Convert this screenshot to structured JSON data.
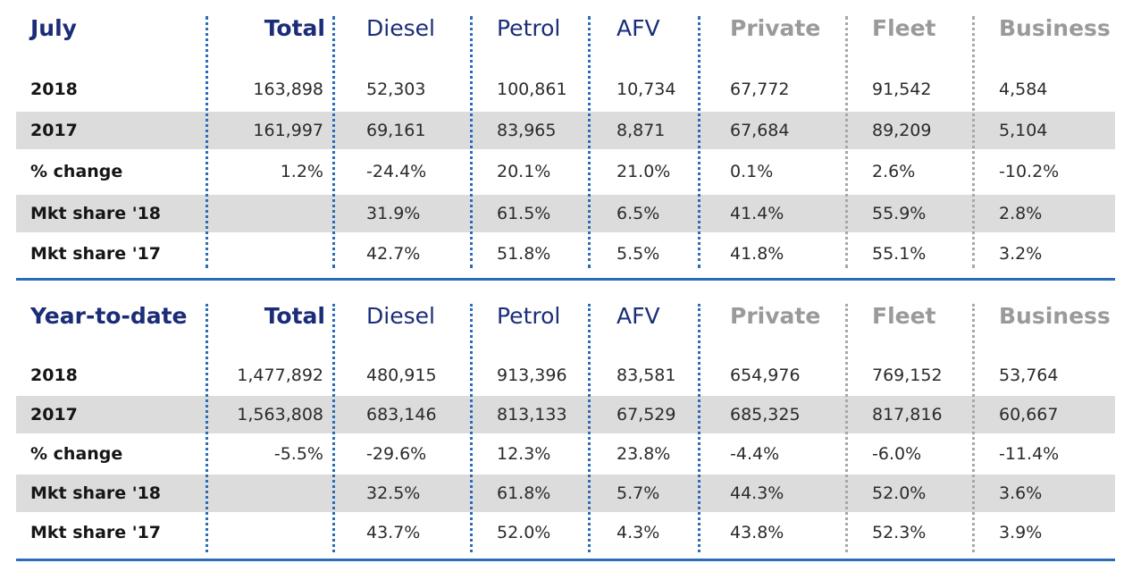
{
  "columns": [
    "Total",
    "Diesel",
    "Petrol",
    "AFV",
    "Private",
    "Fleet",
    "Business"
  ],
  "july": {
    "title": "July",
    "rows": [
      {
        "label": "2018",
        "values": [
          "163,898",
          "52,303",
          "100,861",
          "10,734",
          "67,772",
          "91,542",
          "4,584"
        ]
      },
      {
        "label": "2017",
        "values": [
          "161,997",
          "69,161",
          "83,965",
          "8,871",
          "67,684",
          "89,209",
          "5,104"
        ]
      },
      {
        "label": "% change",
        "values": [
          "1.2%",
          "-24.4%",
          "20.1%",
          "21.0%",
          "0.1%",
          "2.6%",
          "-10.2%"
        ]
      },
      {
        "label": "Mkt share '18",
        "values": [
          "",
          "31.9%",
          "61.5%",
          "6.5%",
          "41.4%",
          "55.9%",
          "2.8%"
        ]
      },
      {
        "label": "Mkt share '17",
        "values": [
          "",
          "42.7%",
          "51.8%",
          "5.5%",
          "41.8%",
          "55.1%",
          "3.2%"
        ]
      }
    ]
  },
  "ytd": {
    "title": "Year-to-date",
    "rows": [
      {
        "label": "2018",
        "values": [
          "1,477,892",
          "480,915",
          "913,396",
          "83,581",
          "654,976",
          "769,152",
          "53,764"
        ]
      },
      {
        "label": "2017",
        "values": [
          "1,563,808",
          "683,146",
          "813,133",
          "67,529",
          "685,325",
          "817,816",
          "60,667"
        ]
      },
      {
        "label": "% change",
        "values": [
          "-5.5%",
          "-29.6%",
          "12.3%",
          "23.8%",
          "-4.4%",
          "-6.0%",
          "-11.4%"
        ]
      },
      {
        "label": "Mkt share '18",
        "values": [
          "",
          "32.5%",
          "61.8%",
          "5.7%",
          "44.3%",
          "52.0%",
          "3.6%"
        ]
      },
      {
        "label": "Mkt share '17",
        "values": [
          "",
          "43.7%",
          "52.0%",
          "4.3%",
          "43.8%",
          "52.3%",
          "3.9%"
        ]
      }
    ]
  },
  "colors": {
    "header_blue": "#1b2d78",
    "separator_blue": "#2b6cb8",
    "separator_grey": "#a8a8a8",
    "muted_header": "#9a9a9a",
    "row_shade": "#dcdcdc"
  }
}
